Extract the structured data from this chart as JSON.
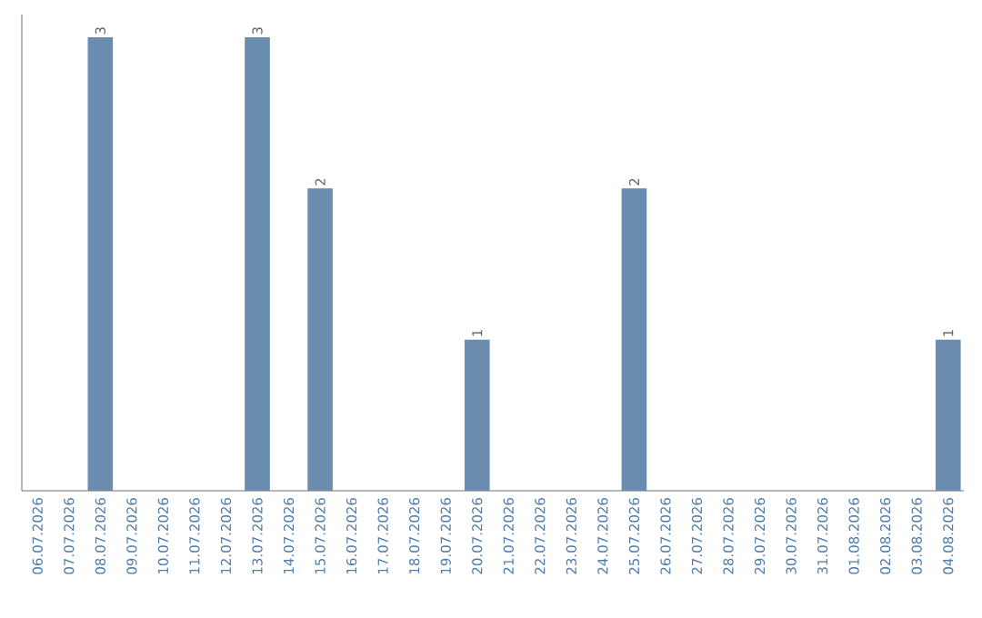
{
  "chart_data": {
    "type": "bar",
    "categories": [
      "06.07.2026",
      "07.07.2026",
      "08.07.2026",
      "09.07.2026",
      "10.07.2026",
      "11.07.2026",
      "12.07.2026",
      "13.07.2026",
      "14.07.2026",
      "15.07.2026",
      "16.07.2026",
      "17.07.2026",
      "18.07.2026",
      "19.07.2026",
      "20.07.2026",
      "21.07.2026",
      "22.07.2026",
      "23.07.2026",
      "24.07.2026",
      "25.07.2026",
      "26.07.2026",
      "27.07.2026",
      "28.07.2026",
      "29.07.2026",
      "30.07.2026",
      "31.07.2026",
      "01.08.2026",
      "02.08.2026",
      "03.08.2026",
      "04.08.2026"
    ],
    "values": [
      0,
      0,
      3,
      0,
      0,
      0,
      0,
      3,
      0,
      2,
      0,
      0,
      0,
      0,
      1,
      0,
      0,
      0,
      0,
      2,
      0,
      0,
      0,
      0,
      0,
      0,
      0,
      0,
      0,
      1
    ],
    "value_labels": [
      null,
      null,
      "3",
      null,
      null,
      null,
      null,
      "3",
      null,
      "2",
      null,
      null,
      null,
      null,
      "1",
      null,
      null,
      null,
      null,
      "2",
      null,
      null,
      null,
      null,
      null,
      null,
      null,
      null,
      null,
      "1"
    ],
    "color": "#6a8caf",
    "tick_labels": "x"
  }
}
